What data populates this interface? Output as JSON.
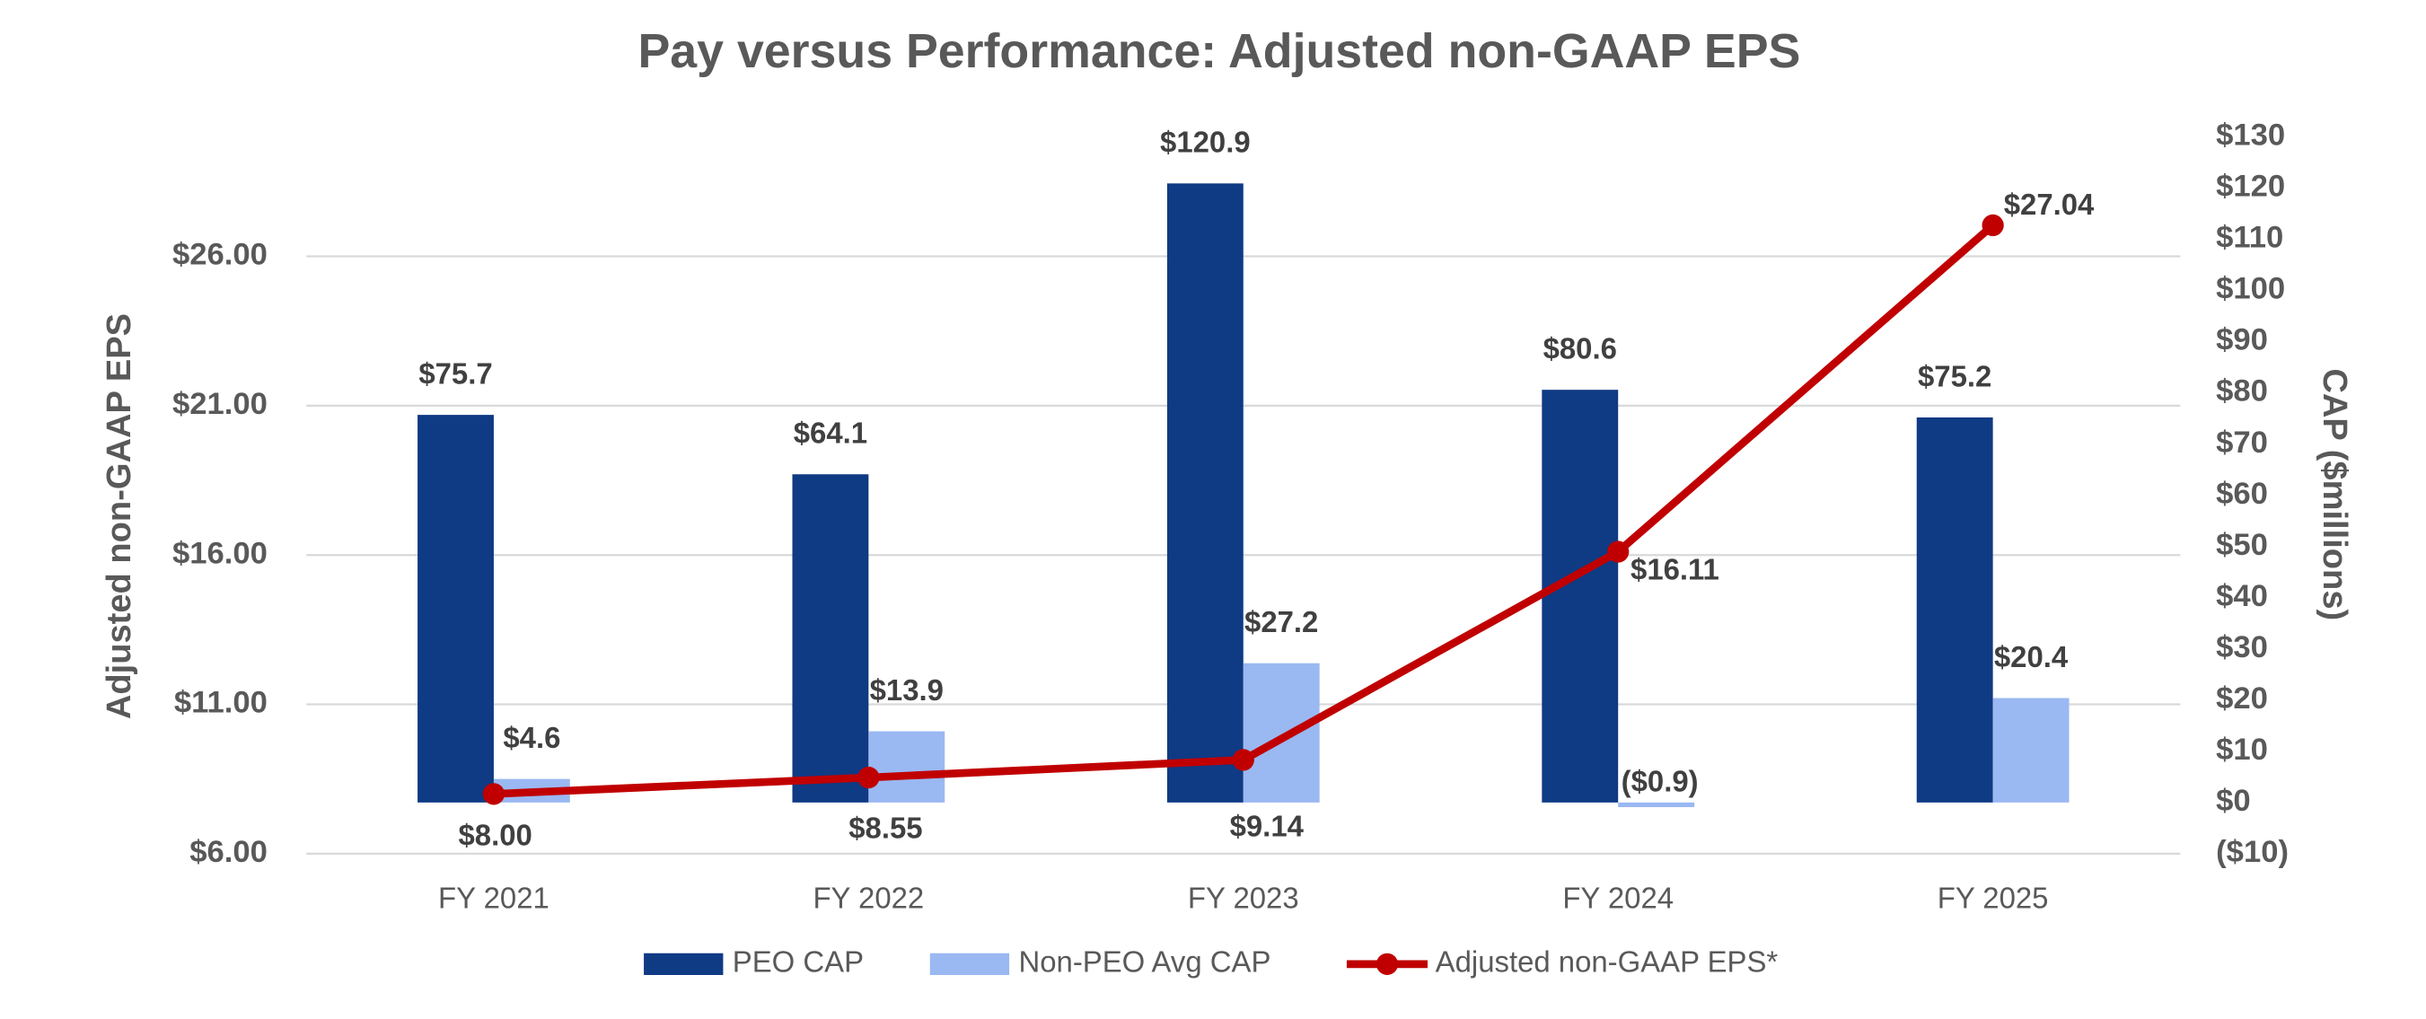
{
  "chart_data": {
    "type": "bar",
    "title": "Pay versus Performance: Adjusted non-GAAP EPS",
    "y_label": "Adjusted non-GAAP EPS",
    "y2_label": "CAP ($millions)",
    "categories": [
      "FY 2021",
      "FY 2022",
      "FY 2023",
      "FY 2024",
      "FY 2025"
    ],
    "ylim": [
      6,
      30
    ],
    "yticks": [
      {
        "value": 6,
        "label": "$6.00"
      },
      {
        "value": 11,
        "label": "$11.00"
      },
      {
        "value": 16,
        "label": "$16.00"
      },
      {
        "value": 21,
        "label": "$21.00"
      },
      {
        "value": 26,
        "label": "$26.00"
      }
    ],
    "y2lim": [
      -10,
      130
    ],
    "y2ticks": [
      {
        "value": -10,
        "label": "($10)"
      },
      {
        "value": 0,
        "label": "$0"
      },
      {
        "value": 10,
        "label": "$10"
      },
      {
        "value": 20,
        "label": "$20"
      },
      {
        "value": 30,
        "label": "$30"
      },
      {
        "value": 40,
        "label": "$40"
      },
      {
        "value": 50,
        "label": "$50"
      },
      {
        "value": 60,
        "label": "$60"
      },
      {
        "value": 70,
        "label": "$70"
      },
      {
        "value": 80,
        "label": "$80"
      },
      {
        "value": 90,
        "label": "$90"
      },
      {
        "value": 100,
        "label": "$100"
      },
      {
        "value": 110,
        "label": "$110"
      },
      {
        "value": 120,
        "label": "$120"
      },
      {
        "value": 130,
        "label": "$130"
      }
    ],
    "grid": true,
    "legend": "bottom",
    "series": [
      {
        "name": "PEO CAP",
        "type": "bar",
        "axis": "y2",
        "color": "#0f3a84",
        "values": [
          75.7,
          64.1,
          120.9,
          80.6,
          75.2
        ],
        "value_labels": [
          "$75.7",
          "$64.1",
          "$120.9",
          "$80.6",
          "$75.2"
        ]
      },
      {
        "name": "Non-PEO Avg CAP",
        "type": "bar",
        "axis": "y2",
        "color": "#9ab8f2",
        "values": [
          4.6,
          13.9,
          27.2,
          -0.9,
          20.4
        ],
        "value_labels": [
          "$4.6",
          "$13.9",
          "$27.2",
          "($0.9)",
          "$20.4"
        ]
      },
      {
        "name": "Adjusted non-GAAP EPS*",
        "type": "line",
        "color": "#c00000",
        "values": [
          8,
          8.55,
          9.14,
          16.11,
          27.04
        ],
        "value_labels": [
          "$8.00",
          "$8.55",
          "$9.14",
          "$16.11",
          "$27.04"
        ]
      }
    ]
  }
}
